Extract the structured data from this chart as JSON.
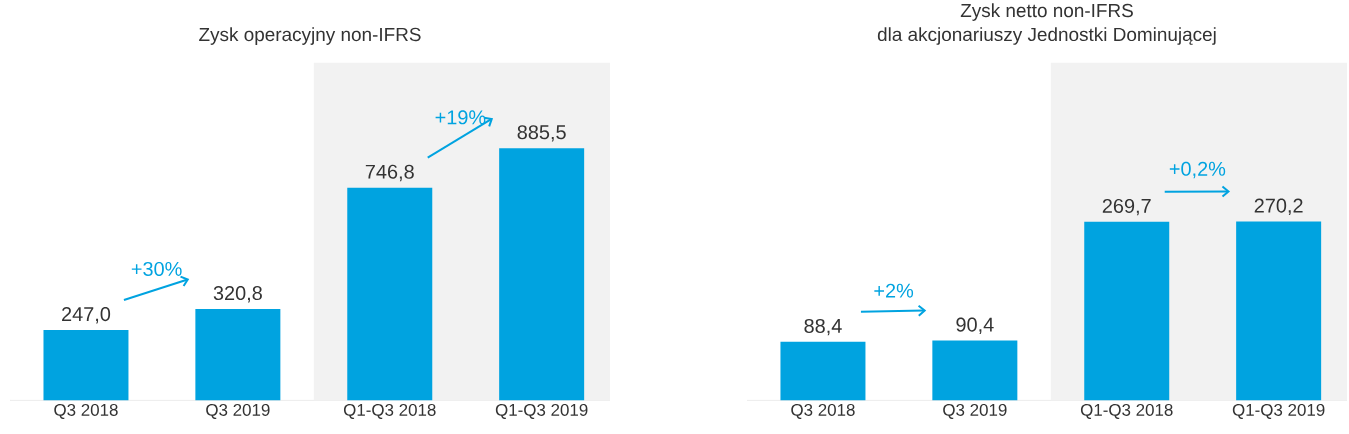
{
  "chart_data": [
    {
      "type": "bar",
      "title": "Zysk operacyjny non-IFRS",
      "categories": [
        "Q3 2018",
        "Q3 2019",
        "Q1-Q3 2018",
        "Q1-Q3 2019"
      ],
      "values": [
        247.0,
        320.8,
        746.8,
        885.5
      ],
      "value_labels": [
        "247,0",
        "320,8",
        "746,8",
        "885,5"
      ],
      "color": "#00a3e0",
      "annotations": [
        "+30%",
        "+19%"
      ],
      "bands": [
        {
          "axis": "x",
          "from": "Q1-Q3 2018",
          "to": "Q1-Q3 2019",
          "color": "#f2f2f2"
        }
      ]
    },
    {
      "type": "bar",
      "title": "Zysk netto non-IFRS",
      "subtitle": "dla akcjonariuszy Jednostki Dominującej",
      "categories": [
        "Q3 2018",
        "Q3 2019",
        "Q1-Q3 2018",
        "Q1-Q3 2019"
      ],
      "values": [
        88.4,
        90.4,
        269.7,
        270.2
      ],
      "value_labels": [
        "88,4",
        "90,4",
        "269,7",
        "270,2"
      ],
      "color": "#00a3e0",
      "annotations": [
        "+2%",
        "+0,2%"
      ],
      "bands": [
        {
          "axis": "x",
          "from": "Q1-Q3 2018",
          "to": "Q1-Q3 2019",
          "color": "#f2f2f2"
        }
      ]
    }
  ]
}
